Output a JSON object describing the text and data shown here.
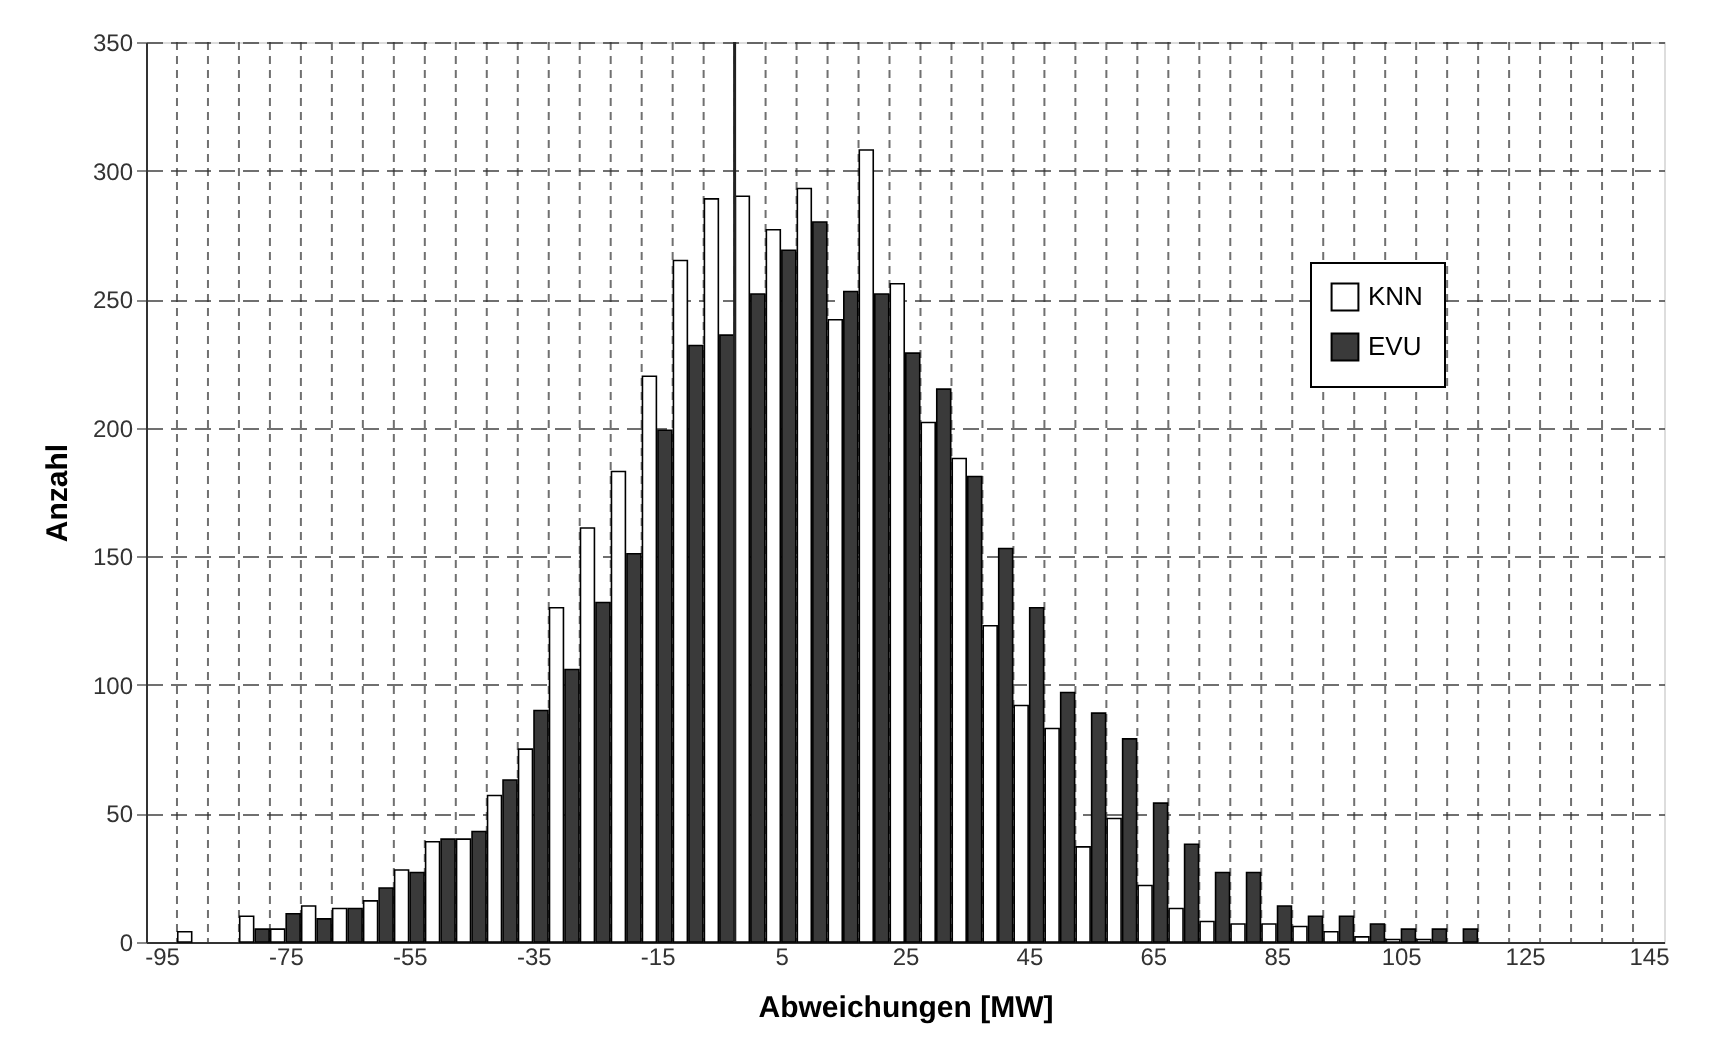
{
  "chart_data": {
    "type": "histogram",
    "xlabel": "Abweichungen [MW]",
    "ylabel": "Anzahl",
    "bins": [
      -92.5,
      -87.5,
      -82.5,
      -77.5,
      -72.5,
      -67.5,
      -62.5,
      -57.5,
      -52.5,
      -47.5,
      -42.5,
      -37.5,
      -32.5,
      -27.5,
      -22.5,
      -17.5,
      -12.5,
      -7.5,
      -2.5,
      2.5,
      7.5,
      12.5,
      17.5,
      22.5,
      27.5,
      32.5,
      37.5,
      42.5,
      47.5,
      52.5,
      57.5,
      62.5,
      67.5,
      72.5,
      77.5,
      82.5,
      87.5,
      92.5,
      97.5,
      102.5,
      107.5,
      112.5,
      117.5
    ],
    "series": [
      {
        "name": "KNN",
        "color": "#ffffff",
        "values": [
          4,
          0,
          10,
          5,
          14,
          13,
          16,
          28,
          39,
          40,
          57,
          75,
          130,
          161,
          183,
          220,
          265,
          289,
          290,
          277,
          293,
          242,
          308,
          256,
          202,
          188,
          123,
          92,
          83,
          37,
          48,
          22,
          13,
          8,
          7,
          7,
          6,
          4,
          2,
          1,
          1,
          0
        ]
      },
      {
        "name": "EVU",
        "color": "#3a3a3a",
        "values": [
          0,
          0,
          5,
          11,
          9,
          13,
          21,
          27,
          40,
          43,
          63,
          90,
          106,
          132,
          151,
          199,
          232,
          236,
          252,
          269,
          280,
          253,
          252,
          229,
          215,
          181,
          153,
          130,
          97,
          89,
          79,
          54,
          38,
          27,
          27,
          14,
          10,
          10,
          7,
          5,
          5,
          5
        ]
      }
    ],
    "xlim": [
      -97.5,
      147.5
    ],
    "xticks": [
      -95,
      -75,
      -55,
      -35,
      -15,
      5,
      25,
      45,
      65,
      85,
      105,
      125,
      145,
      {
        "value": -92.5,
        "label": null
      },
      {
        "value": -87.5,
        "label": null
      },
      {
        "value": -82.5,
        "label": null
      },
      {
        "value": -77.5,
        "label": null
      },
      {
        "value": -72.5,
        "label": null
      },
      {
        "value": -67.5,
        "label": null
      },
      {
        "value": -62.5,
        "label": null
      },
      {
        "value": -57.5,
        "label": null
      },
      {
        "value": -52.5,
        "label": null
      },
      {
        "value": -47.5,
        "label": null
      },
      {
        "value": -42.5,
        "label": null
      },
      {
        "value": -37.5,
        "label": null
      },
      {
        "value": -32.5,
        "label": null
      },
      {
        "value": -27.5,
        "label": null
      },
      {
        "value": -22.5,
        "label": null
      },
      {
        "value": -17.5,
        "label": null
      },
      {
        "value": -12.5,
        "label": null
      },
      {
        "value": -7.5,
        "label": null
      },
      {
        "value": -2.5,
        "label": null
      },
      {
        "value": 2.5,
        "label": null
      },
      {
        "value": 7.5,
        "label": null
      },
      {
        "value": 12.5,
        "label": null
      },
      {
        "value": 17.5,
        "label": null
      },
      {
        "value": 22.5,
        "label": null
      },
      {
        "value": 27.5,
        "label": null
      },
      {
        "value": 32.5,
        "label": null
      },
      {
        "value": 37.5,
        "label": null
      },
      {
        "value": 42.5,
        "label": null
      },
      {
        "value": 47.5,
        "label": null
      },
      {
        "value": 52.5,
        "label": null
      },
      {
        "value": 57.5,
        "label": null
      },
      {
        "value": 62.5,
        "label": null
      },
      {
        "value": 67.5,
        "label": null
      },
      {
        "value": 72.5,
        "label": null
      },
      {
        "value": 77.5,
        "label": null
      },
      {
        "value": 82.5,
        "label": null
      },
      {
        "value": 87.5,
        "label": null
      },
      {
        "value": 92.5,
        "label": null
      },
      {
        "value": 97.5,
        "label": null
      },
      {
        "value": 102.5,
        "label": null
      },
      {
        "value": 107.5,
        "label": null
      },
      {
        "value": 112.5,
        "label": null
      },
      {
        "value": 117.5,
        "label": null
      },
      {
        "value": 122.5,
        "label": null
      },
      {
        "value": 127.5,
        "label": null
      },
      {
        "value": 132.5,
        "label": null
      },
      {
        "value": 137.5,
        "label": null
      },
      {
        "value": 142.5,
        "label": null
      }
    ],
    "ylim": [
      0,
      350
    ],
    "yticks": [
      0,
      50,
      100,
      150,
      200,
      250,
      300,
      350
    ],
    "ref_lines": [
      {
        "axis": "x",
        "value": -2.5,
        "color": "#222222"
      }
    ],
    "grid": true,
    "legend": "top right"
  }
}
